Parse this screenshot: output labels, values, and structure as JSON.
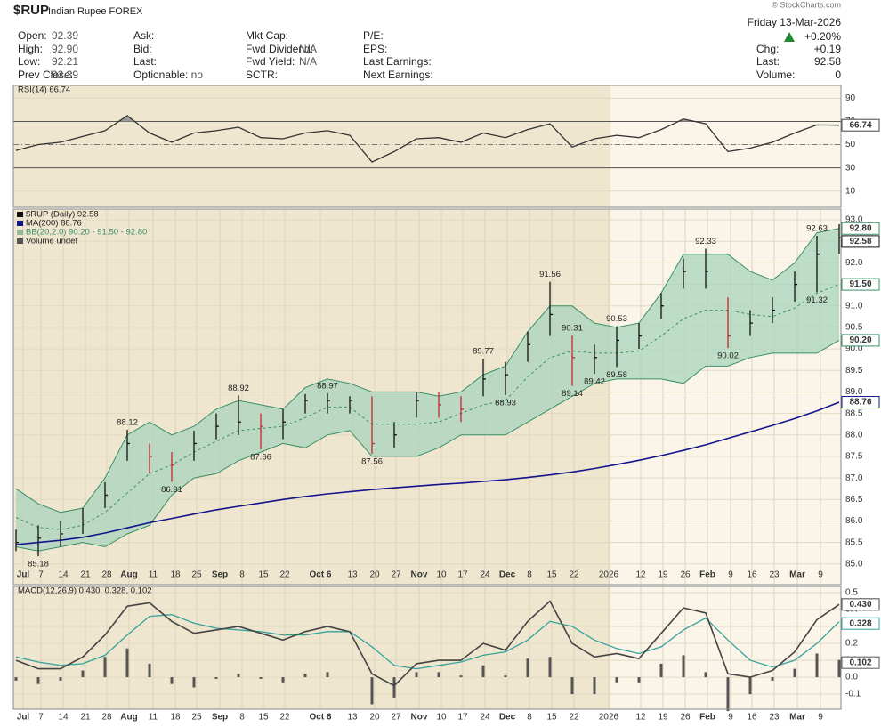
{
  "header": {
    "symbol": "$RUP",
    "name": "Indian Rupee FOREX",
    "date": "Friday 13-Mar-2026",
    "change_pct": "+0.20%",
    "watermark": "© StockCharts.com",
    "columns": [
      [
        {
          "label": "Open:",
          "value": "92.39"
        },
        {
          "label": "High:",
          "value": "92.90"
        },
        {
          "label": "Low:",
          "value": "92.21"
        },
        {
          "label": "Prev Close:",
          "value": "92.39"
        }
      ],
      [
        {
          "label": "Ask:"
        },
        {
          "label": "Bid:"
        },
        {
          "label": "Last:"
        },
        {
          "label": "Optionable:",
          "value": "no"
        }
      ],
      [
        {
          "label": "Mkt Cap:"
        },
        {
          "label": "Fwd Dividend:",
          "value": "N/A"
        },
        {
          "label": "Fwd Yield:",
          "value": "N/A"
        },
        {
          "label": "SCTR:"
        }
      ],
      [
        {
          "label": "P/E:"
        },
        {
          "label": "EPS:"
        },
        {
          "label": "Last Earnings:"
        },
        {
          "label": "Next Earnings:"
        }
      ]
    ],
    "right": [
      {
        "label": "Chg:",
        "value": "+0.19"
      },
      {
        "label": "Last:",
        "value": "92.58"
      },
      {
        "label": "Volume:",
        "value": "0"
      }
    ]
  },
  "chart_data": [
    {
      "type": "rsi",
      "legend": "RSI(14) 66.74",
      "x": [
        0,
        5,
        10,
        15,
        20,
        25,
        30,
        35,
        40,
        45,
        50,
        55,
        60,
        65,
        70,
        75,
        80,
        85,
        90,
        95,
        100,
        105,
        110,
        115,
        120,
        125,
        130,
        135,
        140,
        145,
        150,
        155,
        160,
        165,
        170,
        175,
        180,
        185
      ],
      "values": [
        45,
        50,
        52,
        57,
        62,
        75,
        60,
        52,
        60,
        62,
        65,
        56,
        55,
        60,
        62,
        58,
        35,
        44,
        55,
        56,
        52,
        60,
        56,
        63,
        68,
        48,
        55,
        58,
        56,
        63,
        72,
        68,
        44,
        47,
        52,
        60,
        67,
        66.74
      ],
      "color": "#333333",
      "overbought_fill": "#9a9a9a",
      "ylim": [
        -4,
        101
      ],
      "yticks": [
        10,
        30,
        50,
        70,
        90
      ],
      "levels": [
        30,
        70
      ],
      "midline": 50
    },
    {
      "type": "ohlc",
      "legend": [
        "$RUP (Daily) 92.58",
        "MA(200) 88.76",
        "BB(20,2.0) 90.20 - 91.50 - 92.80",
        "Volume undef"
      ],
      "x": [
        0,
        5,
        10,
        15,
        20,
        25,
        30,
        35,
        40,
        45,
        50,
        55,
        60,
        65,
        70,
        75,
        80,
        85,
        90,
        95,
        100,
        105,
        110,
        115,
        120,
        125,
        130,
        135,
        140,
        145,
        150,
        155,
        160,
        165,
        170,
        175,
        180,
        185
      ],
      "high": [
        85.8,
        85.9,
        86.0,
        86.3,
        86.9,
        88.12,
        87.8,
        87.6,
        88.1,
        88.5,
        88.92,
        88.5,
        88.6,
        88.95,
        88.97,
        88.9,
        88.9,
        88.3,
        89.0,
        89.0,
        88.9,
        89.77,
        89.7,
        90.4,
        91.56,
        90.31,
        90.1,
        90.53,
        90.6,
        91.3,
        92.1,
        92.33,
        91.2,
        90.9,
        91.2,
        91.8,
        92.63,
        92.9
      ],
      "low": [
        85.3,
        85.18,
        85.4,
        85.7,
        86.3,
        87.4,
        87.1,
        86.91,
        87.4,
        87.9,
        88.0,
        87.66,
        87.9,
        88.5,
        88.5,
        88.5,
        87.56,
        87.7,
        88.4,
        88.4,
        88.3,
        88.9,
        88.93,
        89.7,
        90.3,
        89.14,
        89.42,
        89.58,
        90.0,
        90.7,
        91.4,
        91.4,
        90.02,
        90.3,
        90.6,
        91.1,
        91.32,
        92.21
      ],
      "close": [
        85.5,
        85.6,
        85.7,
        86.0,
        86.6,
        87.8,
        87.5,
        87.3,
        87.8,
        88.2,
        88.3,
        88.2,
        88.3,
        88.8,
        88.8,
        88.8,
        87.8,
        88.0,
        88.8,
        88.7,
        88.6,
        89.3,
        89.4,
        90.1,
        90.8,
        89.8,
        89.8,
        90.2,
        90.3,
        91.0,
        91.8,
        91.8,
        90.3,
        90.6,
        90.9,
        91.5,
        92.2,
        92.58
      ],
      "bar_colors": {
        "up": "#111111",
        "down": "#c0282d"
      },
      "bands": {
        "color": "#3a8f66",
        "fill": "#a9d4bd",
        "upper": [
          86.75,
          86.4,
          86.2,
          86.3,
          87.0,
          88.0,
          88.3,
          88.0,
          88.2,
          88.6,
          88.8,
          88.7,
          88.6,
          89.1,
          89.3,
          89.2,
          89.0,
          89.0,
          89.0,
          88.9,
          89.0,
          89.4,
          89.6,
          90.4,
          91.0,
          91.0,
          90.6,
          90.5,
          90.6,
          91.3,
          92.2,
          92.2,
          92.2,
          91.8,
          91.6,
          92.0,
          92.7,
          92.8
        ],
        "middle": [
          86.08,
          85.85,
          85.8,
          85.9,
          86.2,
          86.65,
          87.1,
          87.3,
          87.6,
          87.85,
          88.1,
          88.15,
          88.2,
          88.4,
          88.65,
          88.65,
          88.25,
          88.25,
          88.25,
          88.3,
          88.5,
          88.7,
          88.8,
          89.35,
          89.8,
          89.95,
          89.9,
          89.9,
          89.95,
          90.3,
          90.7,
          90.9,
          90.9,
          90.8,
          90.75,
          90.95,
          91.3,
          91.5
        ],
        "lower": [
          85.4,
          85.3,
          85.4,
          85.5,
          85.4,
          85.7,
          85.9,
          86.6,
          87.0,
          87.1,
          87.4,
          87.6,
          87.8,
          87.7,
          88.0,
          88.1,
          87.5,
          87.5,
          87.5,
          87.7,
          88.0,
          88.0,
          88.0,
          88.3,
          88.6,
          88.9,
          89.2,
          89.3,
          89.3,
          89.3,
          89.2,
          89.6,
          89.6,
          89.8,
          89.9,
          89.9,
          89.9,
          90.2
        ],
        "last_labels": [
          "92.80",
          "91.50",
          "90.20"
        ]
      },
      "ma": {
        "color": "#14148c",
        "values": [
          85.45,
          85.5,
          85.55,
          85.62,
          85.72,
          85.84,
          85.96,
          86.06,
          86.16,
          86.26,
          86.34,
          86.42,
          86.5,
          86.57,
          86.63,
          86.68,
          86.73,
          86.77,
          86.81,
          86.85,
          86.88,
          86.92,
          86.96,
          87.01,
          87.07,
          87.14,
          87.22,
          87.31,
          87.41,
          87.52,
          87.64,
          87.77,
          87.92,
          88.07,
          88.22,
          88.38,
          88.56,
          88.76
        ]
      },
      "ylim": [
        84.52,
        93.25
      ],
      "yticks": [
        {
          "value": 85,
          "label": "85.0"
        },
        85.5,
        {
          "value": 86,
          "label": "86.0"
        },
        86.5,
        {
          "value": 87,
          "label": "87.0"
        },
        87.5,
        {
          "value": 88,
          "label": "88.0"
        },
        88.5,
        {
          "value": 89,
          "label": "89.0"
        },
        89.5,
        {
          "value": 90,
          "label": "90.0"
        },
        90.5,
        {
          "value": 91,
          "label": "91.0"
        },
        91.5,
        {
          "value": 92,
          "label": "92.0"
        },
        92.5,
        {
          "value": 93,
          "label": "93.0"
        }
      ],
      "xticks": [
        {
          "value": 1.6,
          "label": "Jul"
        },
        {
          "value": 5.6,
          "label": "7"
        },
        {
          "value": 10.6,
          "label": "14"
        },
        {
          "value": 15.6,
          "label": "21"
        },
        {
          "value": 20.4,
          "label": "28"
        },
        {
          "value": 25.4,
          "label": "Aug"
        },
        {
          "value": 30.8,
          "label": "11"
        },
        {
          "value": 35.8,
          "label": "18"
        },
        {
          "value": 40.6,
          "label": "25"
        },
        {
          "value": 45.8,
          "label": "Sep"
        },
        {
          "value": 50.8,
          "label": "8"
        },
        {
          "value": 55.6,
          "label": "15"
        },
        {
          "value": 60.4,
          "label": "22"
        },
        {
          "value": 68.4,
          "label": "Oct 6"
        },
        {
          "value": 75.6,
          "label": "13"
        },
        {
          "value": 80.6,
          "label": "20"
        },
        {
          "value": 85.4,
          "label": "27"
        },
        {
          "value": 90.6,
          "label": "Nov"
        },
        {
          "value": 95.6,
          "label": "10"
        },
        {
          "value": 100.4,
          "label": "17"
        },
        {
          "value": 105.4,
          "label": "24"
        },
        {
          "value": 110.4,
          "label": "Dec"
        },
        {
          "value": 115.4,
          "label": "8"
        },
        {
          "value": 120.4,
          "label": "15"
        },
        {
          "value": 125.4,
          "label": "22"
        },
        {
          "value": 133.2,
          "label": "2026"
        },
        {
          "value": 140.4,
          "label": "12"
        },
        {
          "value": 145.4,
          "label": "19"
        },
        {
          "value": 150.4,
          "label": "26"
        },
        {
          "value": 155.4,
          "label": "Feb"
        },
        {
          "value": 160.6,
          "label": "9"
        },
        {
          "value": 165.4,
          "label": "16"
        },
        {
          "value": 170.4,
          "label": "23"
        },
        {
          "value": 175.6,
          "label": "Mar"
        },
        {
          "value": 180.8,
          "label": "9"
        }
      ]
    },
    {
      "type": "macd",
      "legend": "MACD(12,26,9) 0.430, 0.328, 0.102",
      "x": [
        0,
        5,
        10,
        15,
        20,
        25,
        30,
        35,
        40,
        45,
        50,
        55,
        60,
        65,
        70,
        75,
        80,
        85,
        90,
        95,
        100,
        105,
        110,
        115,
        120,
        125,
        130,
        135,
        140,
        145,
        150,
        155,
        160,
        165,
        170,
        175,
        180,
        185
      ],
      "macd": {
        "color": "#444444",
        "values": [
          0.1,
          0.05,
          0.05,
          0.12,
          0.25,
          0.42,
          0.44,
          0.33,
          0.26,
          0.28,
          0.3,
          0.26,
          0.22,
          0.27,
          0.3,
          0.27,
          0.02,
          -0.05,
          0.08,
          0.1,
          0.1,
          0.2,
          0.16,
          0.33,
          0.45,
          0.2,
          0.12,
          0.14,
          0.11,
          0.26,
          0.41,
          0.38,
          0.02,
          0.0,
          0.04,
          0.15,
          0.34,
          0.43
        ],
        "last_label": "0.430"
      },
      "signal": {
        "color": "#35a39b",
        "values": [
          0.12,
          0.09,
          0.07,
          0.08,
          0.13,
          0.25,
          0.36,
          0.37,
          0.32,
          0.29,
          0.28,
          0.27,
          0.25,
          0.25,
          0.27,
          0.27,
          0.18,
          0.07,
          0.05,
          0.07,
          0.09,
          0.13,
          0.15,
          0.22,
          0.33,
          0.3,
          0.22,
          0.17,
          0.14,
          0.18,
          0.28,
          0.35,
          0.22,
          0.1,
          0.06,
          0.1,
          0.2,
          0.328
        ],
        "last_label": "0.328"
      },
      "histogram": {
        "color": "#555555",
        "values": [
          -0.02,
          -0.04,
          -0.02,
          0.04,
          0.12,
          0.17,
          0.08,
          -0.04,
          -0.06,
          -0.01,
          0.02,
          -0.01,
          -0.03,
          0.02,
          0.03,
          0,
          -0.16,
          -0.12,
          0.03,
          0.03,
          0.01,
          0.07,
          0.01,
          0.11,
          0.12,
          -0.1,
          -0.1,
          -0.03,
          -0.03,
          0.08,
          0.13,
          0.03,
          -0.2,
          -0.1,
          -0.02,
          0.05,
          0.14,
          0.102
        ],
        "last_label": "0.102"
      },
      "ylim": [
        -0.189,
        0.537
      ],
      "yticks": [
        -0.1,
        {
          "value": 0,
          "label": "0.0"
        },
        0.1,
        0.2,
        0.3,
        0.4,
        0.5
      ],
      "xticks": [
        {
          "value": 1.6,
          "label": "Jul"
        },
        {
          "value": 5.6,
          "label": "7"
        },
        {
          "value": 10.6,
          "label": "14"
        },
        {
          "value": 15.6,
          "label": "21"
        },
        {
          "value": 20.4,
          "label": "28"
        },
        {
          "value": 25.4,
          "label": "Aug"
        },
        {
          "value": 30.8,
          "label": "11"
        },
        {
          "value": 35.8,
          "label": "18"
        },
        {
          "value": 40.6,
          "label": "25"
        },
        {
          "value": 45.8,
          "label": "Sep"
        },
        {
          "value": 50.8,
          "label": "8"
        },
        {
          "value": 55.6,
          "label": "15"
        },
        {
          "value": 60.4,
          "label": "22"
        },
        {
          "value": 68.4,
          "label": "Oct 6"
        },
        {
          "value": 75.6,
          "label": "13"
        },
        {
          "value": 80.6,
          "label": "20"
        },
        {
          "value": 85.4,
          "label": "27"
        },
        {
          "value": 90.6,
          "label": "Nov"
        },
        {
          "value": 95.6,
          "label": "10"
        },
        {
          "value": 100.4,
          "label": "17"
        },
        {
          "value": 105.4,
          "label": "24"
        },
        {
          "value": 110.4,
          "label": "Dec"
        },
        {
          "value": 115.4,
          "label": "8"
        },
        {
          "value": 120.4,
          "label": "15"
        },
        {
          "value": 125.4,
          "label": "22"
        },
        {
          "value": 133.2,
          "label": "2026"
        },
        {
          "value": 140.4,
          "label": "12"
        },
        {
          "value": 145.4,
          "label": "19"
        },
        {
          "value": 150.4,
          "label": "26"
        },
        {
          "value": 155.4,
          "label": "Feb"
        },
        {
          "value": 160.6,
          "label": "9"
        },
        {
          "value": 165.4,
          "label": "16"
        },
        {
          "value": 170.4,
          "label": "23"
        },
        {
          "value": 175.6,
          "label": "Mar"
        },
        {
          "value": 180.8,
          "label": "9"
        }
      ]
    }
  ]
}
